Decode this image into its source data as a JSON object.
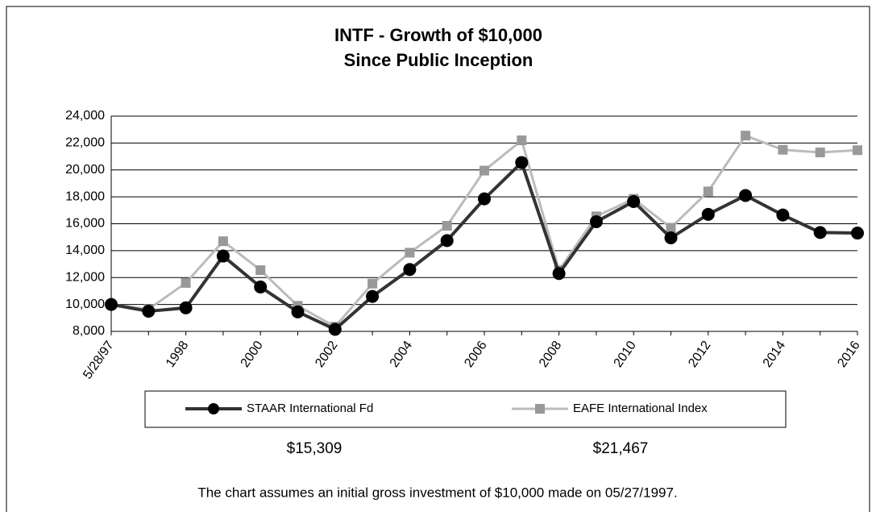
{
  "chart_data": {
    "type": "line",
    "title": [
      "INTF - Growth of $10,000",
      "Since Public Inception"
    ],
    "categories": [
      "5/28/97",
      null,
      "1998",
      null,
      "2000",
      null,
      "2002",
      null,
      "2004",
      null,
      "2006",
      null,
      "2008",
      null,
      "2010",
      null,
      "2012",
      null,
      "2014",
      null,
      "2016"
    ],
    "series": [
      {
        "name": "STAAR International Fd",
        "color": "#333333",
        "marker": "circle",
        "values": [
          10000,
          9500,
          9750,
          13600,
          11300,
          9450,
          8150,
          10600,
          12600,
          14750,
          17850,
          20550,
          12300,
          16150,
          17650,
          14950,
          16700,
          18100,
          16650,
          15350,
          15309
        ]
      },
      {
        "name": "EAFE International Index",
        "color": "#bbbbbb",
        "marker": "square",
        "values": [
          10000,
          9650,
          11600,
          14700,
          12550,
          9900,
          8350,
          11550,
          13850,
          15850,
          19950,
          22200,
          12550,
          16550,
          17850,
          15700,
          18400,
          22550,
          21500,
          21300,
          21467
        ]
      }
    ],
    "end_labels": [
      "$15,309",
      "$21,467"
    ],
    "ylim": [
      8000,
      24000
    ],
    "yticks": [
      {
        "value": 8000,
        "label": "8,000"
      },
      {
        "value": 10000,
        "label": "10,000"
      },
      {
        "value": 12000,
        "label": "12,000"
      },
      {
        "value": 14000,
        "label": "14,000"
      },
      {
        "value": 16000,
        "label": "16,000"
      },
      {
        "value": 18000,
        "label": "18,000"
      },
      {
        "value": 20000,
        "label": "20,000"
      },
      {
        "value": 22000,
        "label": "22,000"
      },
      {
        "value": 24000,
        "label": "24,000"
      }
    ],
    "grid": true,
    "footnote": "The chart assumes an initial gross investment of $10,000 made on 05/27/1997."
  }
}
